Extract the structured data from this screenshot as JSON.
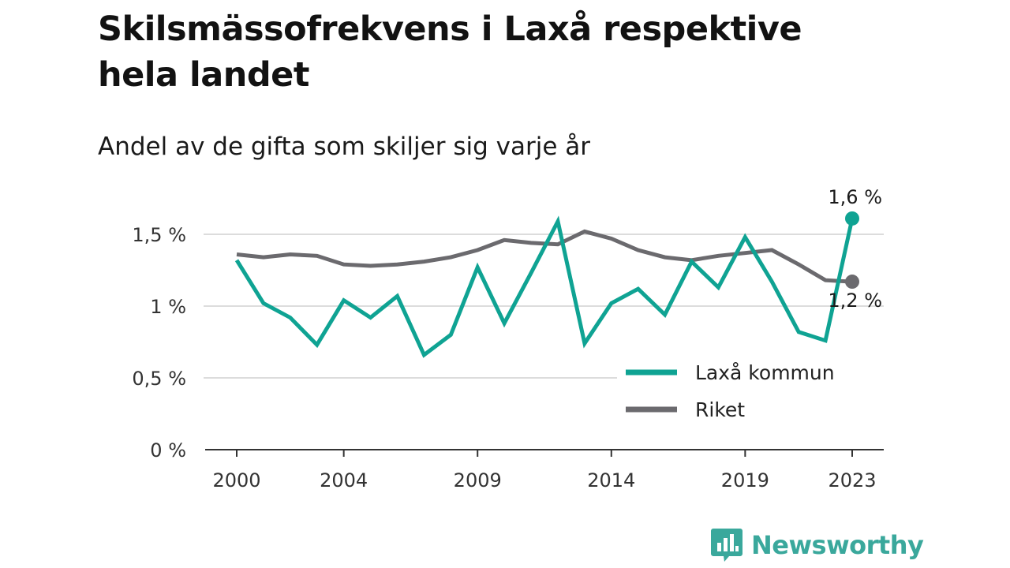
{
  "chart_data": {
    "type": "line",
    "title": "Skilsmässofrekvens i Laxå respektive hela landet",
    "subtitle": "Andel av de gifta som skiljer sig varje år",
    "x": [
      2000,
      2001,
      2002,
      2003,
      2004,
      2005,
      2006,
      2007,
      2008,
      2009,
      2010,
      2011,
      2012,
      2013,
      2014,
      2015,
      2016,
      2017,
      2018,
      2019,
      2020,
      2021,
      2022,
      2023
    ],
    "x_tick_labels": [
      "2000",
      "2004",
      "2009",
      "2014",
      "2019",
      "2023"
    ],
    "x_ticks": [
      2000,
      2004,
      2009,
      2014,
      2019,
      2023
    ],
    "y_ticks": [
      0,
      0.5,
      1,
      1.5
    ],
    "y_tick_labels": [
      "0 %",
      "0,5 %",
      "1 %",
      "1,5 %"
    ],
    "ylim": [
      0,
      1.5
    ],
    "grid": true,
    "legend_position": "bottom-right",
    "series": [
      {
        "name": "Laxå kommun",
        "color": "#0fa393",
        "values": [
          1.32,
          1.02,
          0.92,
          0.73,
          1.04,
          0.92,
          1.07,
          0.66,
          0.8,
          1.27,
          0.88,
          1.23,
          1.59,
          0.74,
          1.02,
          1.12,
          0.94,
          1.31,
          1.13,
          1.48,
          1.17,
          0.82,
          0.76,
          1.61
        ],
        "end_label": "1,6 %"
      },
      {
        "name": "Riket",
        "color": "#6b6a6e",
        "values": [
          1.36,
          1.34,
          1.36,
          1.35,
          1.29,
          1.28,
          1.29,
          1.31,
          1.34,
          1.39,
          1.46,
          1.44,
          1.43,
          1.52,
          1.47,
          1.39,
          1.34,
          1.32,
          1.35,
          1.37,
          1.39,
          1.29,
          1.18,
          1.17
        ],
        "end_label": "1,2 %"
      }
    ]
  },
  "brand": {
    "name": "Newsworthy",
    "color": "#3aa89c",
    "icon": "newsworthy-logo-icon"
  }
}
